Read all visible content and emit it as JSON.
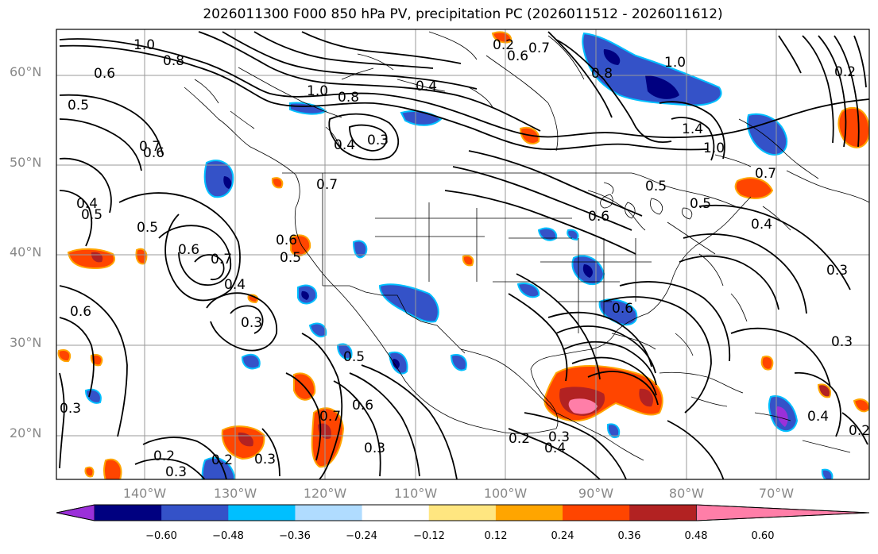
{
  "title": "2026011300 F000 850 hPa PV, precipitation PC (2026011512 - 2026011612)",
  "lat_labels": [
    "60°N",
    "50°N",
    "40°N",
    "30°N",
    "20°N"
  ],
  "lon_labels": [
    "140°W",
    "130°W",
    "120°W",
    "110°W",
    "100°W",
    "90°W",
    "80°W",
    "70°W"
  ],
  "colorbar": {
    "ticks": [
      "−0.60",
      "−0.48",
      "−0.36",
      "−0.24",
      "−0.12",
      "0.12",
      "0.24",
      "0.36",
      "0.48",
      "0.60"
    ],
    "colors": [
      "#9b30d9",
      "#000080",
      "#3452c8",
      "#00bfff",
      "#b0dcff",
      "#ffffff",
      "#ffe680",
      "#ffa500",
      "#ff4500",
      "#b22222",
      "#ff7ea8"
    ]
  },
  "contour_labels": [
    "1.0",
    "0.8",
    "0.6",
    "0.5",
    "0.7",
    "0.6",
    "0.4",
    "0.5",
    "0.5",
    "0.6",
    "0.6",
    "0.7",
    "0.4",
    "0.3",
    "0.3",
    "0.5",
    "0.7",
    "0.6",
    "0.3",
    "0.2",
    "0.3",
    "0.2",
    "0.3",
    "1.0",
    "0.8",
    "0.4",
    "0.3",
    "0.4",
    "0.7",
    "0.6",
    "0.5",
    "0.6",
    "0.2",
    "0.7",
    "0.8",
    "1.0",
    "1.4",
    "1.0",
    "0.7",
    "0.5",
    "0.6",
    "0.6",
    "0.4",
    "0.5",
    "0.2",
    "0.3",
    "0.4",
    "0.3",
    "0.3",
    "0.4",
    "0.2",
    "0.2"
  ]
}
